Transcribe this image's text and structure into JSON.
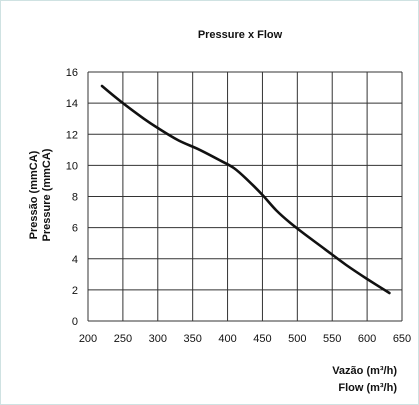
{
  "chart_data": {
    "type": "line",
    "title": "Pressure x Flow",
    "xlabel": [
      "Vazão (m³/h)",
      "Flow (m³/h)"
    ],
    "ylabel": [
      "Pressão (mmCA)",
      "Pressure (mmCA)"
    ],
    "xlim": [
      200,
      650
    ],
    "ylim": [
      0,
      16
    ],
    "xticks": [
      200,
      250,
      300,
      350,
      400,
      450,
      500,
      550,
      600,
      650
    ],
    "yticks": [
      0,
      2,
      4,
      6,
      8,
      10,
      12,
      14,
      16
    ],
    "grid": true,
    "series": [
      {
        "x": [
          220,
          250,
          280,
          300,
          330,
          360,
          390,
          410,
          430,
          450,
          470,
          490,
          510,
          540,
          570,
          600,
          632
        ],
        "y": [
          15.1,
          14.0,
          13.0,
          12.4,
          11.6,
          11.0,
          10.3,
          9.8,
          9.0,
          8.1,
          7.1,
          6.3,
          5.6,
          4.6,
          3.6,
          2.7,
          1.8
        ]
      }
    ]
  }
}
